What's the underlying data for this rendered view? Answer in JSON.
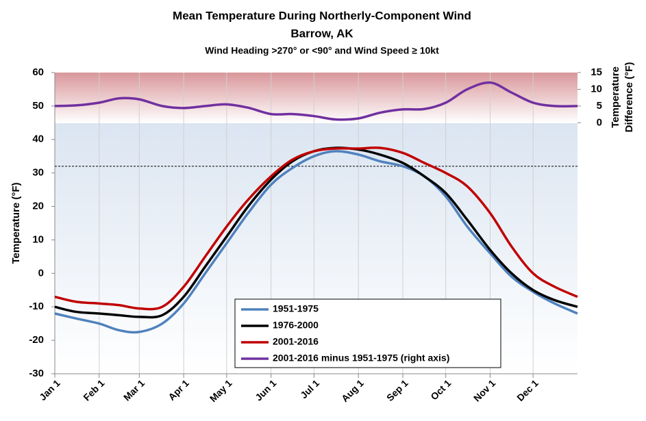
{
  "chart_data": {
    "type": "line",
    "title": "Mean Temperature During Northerly-Component Wind",
    "subtitle": "Barrow, AK",
    "note": "Wind Heading >270° or <90° and Wind Speed ≥ 10kt",
    "ylabel": "Temperature (°F)",
    "y2label": [
      "Temperature",
      "Difference (°F)"
    ],
    "x": [
      0,
      15,
      31,
      45,
      59,
      75,
      90,
      105,
      120,
      135,
      151,
      166,
      181,
      196,
      212,
      227,
      243,
      258,
      273,
      288,
      304,
      319,
      334,
      349,
      365
    ],
    "xlim": [
      0,
      365
    ],
    "xticks": [
      {
        "value": 0,
        "label": "Jan 1"
      },
      {
        "value": 31,
        "label": "Feb 1"
      },
      {
        "value": 59,
        "label": "Mar 1"
      },
      {
        "value": 90,
        "label": "Apr 1"
      },
      {
        "value": 120,
        "label": "May 1"
      },
      {
        "value": 151,
        "label": "Jun 1"
      },
      {
        "value": 181,
        "label": "Jul 1"
      },
      {
        "value": 212,
        "label": "Aug 1"
      },
      {
        "value": 243,
        "label": "Sep 1"
      },
      {
        "value": 273,
        "label": "Oct 1"
      },
      {
        "value": 304,
        "label": "Nov 1"
      },
      {
        "value": 334,
        "label": "Dec 1"
      }
    ],
    "ylim": [
      -30,
      60
    ],
    "yticks": [
      -30,
      -20,
      -10,
      0,
      10,
      20,
      30,
      40,
      50,
      60
    ],
    "y2lim": [
      -75,
      15
    ],
    "y2ticks": [
      0,
      5,
      10,
      15
    ],
    "reference_line": 32,
    "grid": true,
    "series": [
      {
        "name": "1951-1975",
        "color": "#4f81bd",
        "values": [
          -12,
          -13.5,
          -15,
          -17,
          -17.5,
          -15,
          -9,
          0,
          9,
          18,
          26.5,
          31.5,
          35,
          36.5,
          35.5,
          33.5,
          32,
          29,
          23,
          14,
          6,
          -1,
          -5.5,
          -9,
          -12
        ]
      },
      {
        "name": "1976-2000",
        "color": "#000000",
        "values": [
          -10,
          -11.5,
          -12,
          -12.5,
          -13,
          -12.5,
          -7,
          2,
          11,
          20,
          28,
          33.5,
          36.5,
          37.5,
          37,
          35.5,
          33,
          29,
          24,
          16,
          7,
          0,
          -5,
          -8,
          -10
        ]
      },
      {
        "name": "2001-2016",
        "color": "#c00000",
        "values": [
          -7,
          -8.5,
          -9,
          -9.5,
          -10.5,
          -10,
          -4,
          5,
          14,
          22,
          29,
          34,
          36.5,
          37.3,
          37.3,
          37.5,
          36,
          33,
          30,
          26,
          18,
          8,
          0,
          -4,
          -7
        ]
      },
      {
        "name": "2001-2016 minus 1951-1975 (right axis)",
        "color": "#7030a0",
        "axis": "y2",
        "values": [
          5,
          5.2,
          6,
          7.3,
          7,
          5,
          4.4,
          5,
          5.5,
          4.5,
          2.6,
          2.6,
          2,
          1,
          1.3,
          3,
          4,
          4.1,
          6,
          10,
          12,
          9,
          6,
          5,
          5
        ]
      }
    ]
  }
}
